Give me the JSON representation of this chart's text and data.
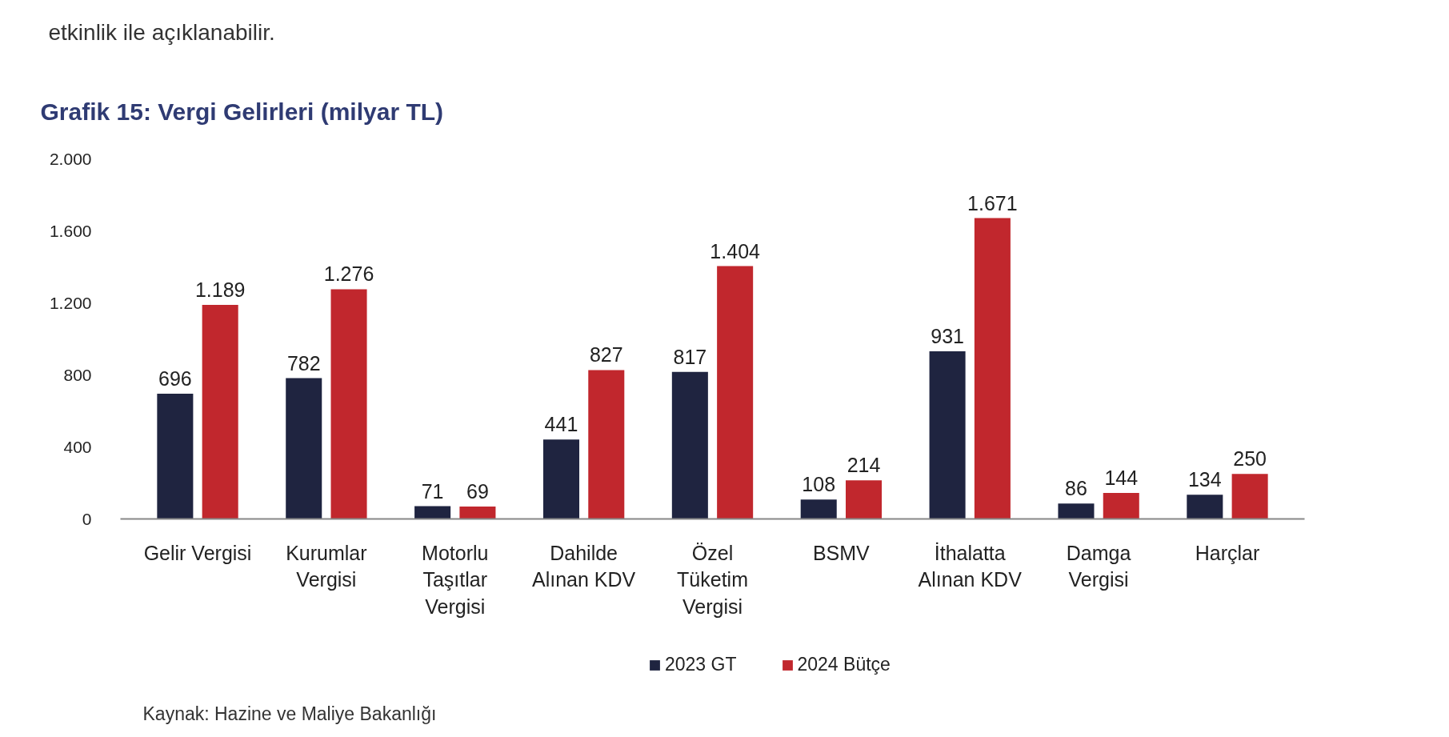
{
  "chart_data": {
    "type": "bar",
    "title": "Grafik 15: Vergi Gelirleri (milyar TL)",
    "categories": [
      "Gelir Vergisi",
      "Kurumlar\nVergisi",
      "Motorlu\nTaşıtlar\nVergisi",
      "Dahilde\nAlınan KDV",
      "Özel\nTüketim\nVergisi",
      "BSMV",
      "İthalatta\nAlınan KDV",
      "Damga\nVergisi",
      "Harçlar"
    ],
    "series": [
      {
        "name": "2023 GT",
        "color": "#1f2440",
        "values": [
          696,
          782,
          71,
          441,
          817,
          108,
          931,
          86,
          134
        ],
        "value_labels": [
          "696",
          "782",
          "71",
          "441",
          "817",
          "108",
          "931",
          "86",
          "134"
        ]
      },
      {
        "name": "2024 Bütçe",
        "color": "#c1272d",
        "values": [
          1189,
          1276,
          69,
          827,
          1404,
          214,
          1671,
          144,
          250
        ],
        "value_labels": [
          "1.189",
          "1.276",
          "69",
          "827",
          "1.404",
          "214",
          "1.671",
          "144",
          "250"
        ]
      }
    ],
    "ylim": [
      0,
      2000
    ],
    "yticks": [
      0,
      400,
      800,
      {
        "value": 1200,
        "label": "1.200"
      },
      {
        "value": 1600,
        "label": "1.600"
      },
      {
        "value": 2000,
        "label": "2.000"
      }
    ],
    "grid": false,
    "legend": "bottom",
    "annotations": [
      "etkinlik ile açıklanabilir.",
      "Kaynak: Hazine ve Maliye Bakanlığı"
    ]
  }
}
